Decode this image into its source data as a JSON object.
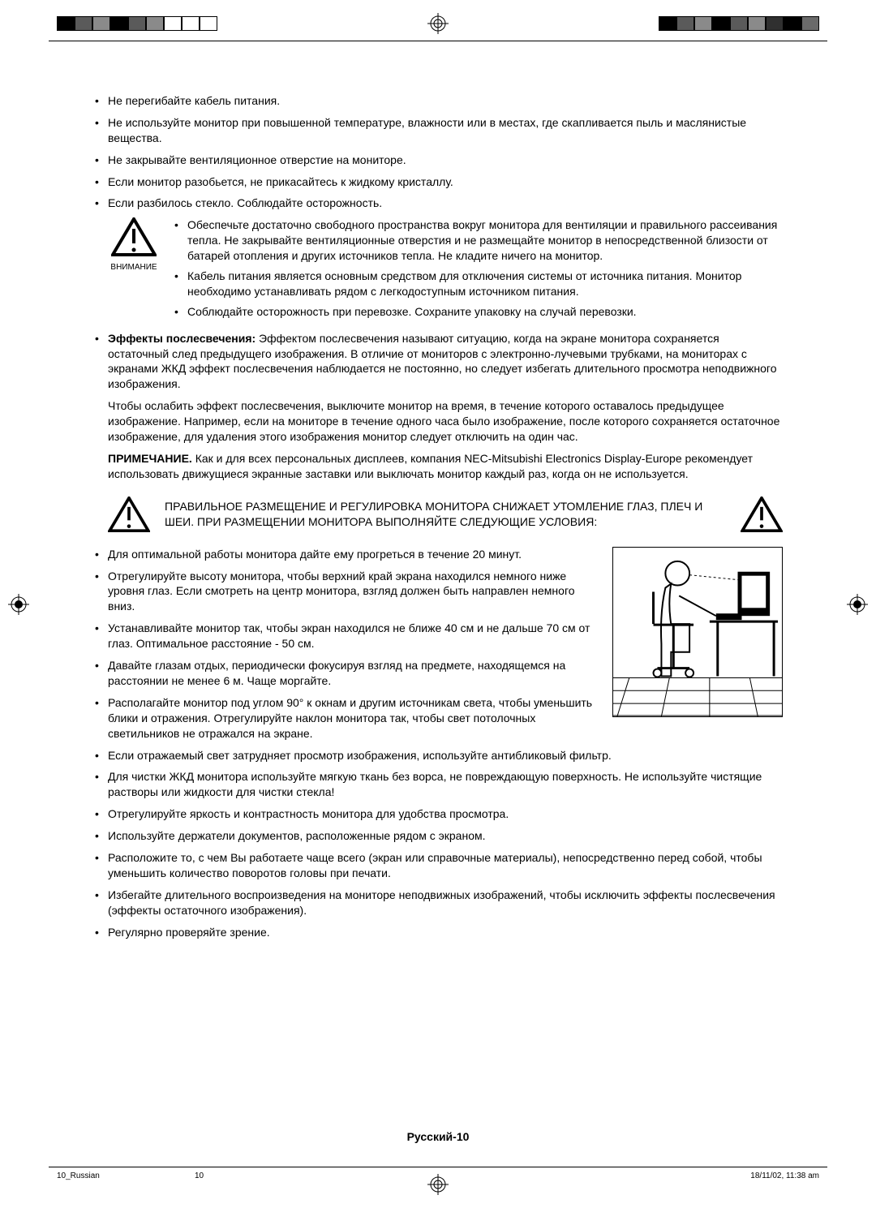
{
  "topBullets": [
    "Не перегибайте кабель питания.",
    "Не используйте монитор при повышенной температуре, влажности или в местах, где скапливается пыль и маслянистые вещества.",
    "Не закрывайте вентиляционное отверстие на мониторе.",
    "Если монитор разобьется, не прикасайтесь к жидкому кристаллу.",
    "Если разбилось стекло. Соблюдайте осторожность."
  ],
  "warningLabel": "ВНИМАНИЕ",
  "warningBullets": [
    "Обеспечьте достаточно свободного пространства вокруг монитора для вентиляции и правильного рассеивания тепла. Не закрывайте вентиляционные отверстия и не размещайте монитор в непосредственной близости от батарей отопления и других источников тепла. Не кладите ничего на монитор.",
    "Кабель питания является основным средством для отключения системы от источника питания. Монитор необходимо устанавливать рядом с легкодоступным источником питания.",
    "Соблюдайте осторожность при перевозке. Сохраните упаковку на случай перевозки."
  ],
  "effectLabel": "Эффекты послесвечения:",
  "effectText": " Эффектом послесвечения называют ситуацию, когда на экране монитора сохраняется остаточный след предыдущего изображения. В отличие от мониторов с электронно-лучевыми трубками, на мониторах с экранами ЖКД эффект послесвечения наблюдается не постоянно, но следует избегать длительного просмотра неподвижного изображения.",
  "effectPara2": "Чтобы ослабить эффект послесвечения, выключите монитор на время, в течение которого оставалось предыдущее изображение. Например, если на мониторе в течение одного часа было изображение, после которого сохраняется остаточное изображение, для удаления этого изображения монитор следует отключить на один час.",
  "noteLabel": "ПРИМЕЧАНИЕ.",
  "noteText": " Как и для всех персональных дисплеев, компания NEC-Mitsubishi Electronics Display-Europe рекомендует использовать движущиеся экранные заставки или выключать монитор каждый раз, когда он не используется.",
  "cautionText": "ПРАВИЛЬНОЕ РАЗМЕЩЕНИЕ И РЕГУЛИРОВКА МОНИТОРА СНИЖАЕТ УТОМЛЕНИЕ ГЛАЗ, ПЛЕЧ И ШЕИ. ПРИ РАЗМЕЩЕНИИ МОНИТОРА ВЫПОЛНЯЙТЕ СЛЕДУЮЩИЕ УСЛОВИЯ:",
  "bottomBullets": [
    "Для оптимальной работы монитора дайте ему прогреться в течение 20 минут.",
    "Отрегулируйте высоту монитора, чтобы верхний край экрана находился немного ниже уровня глаз. Если смотреть на центр монитора, взгляд должен быть направлен немного вниз.",
    "Устанавливайте монитор так, чтобы экран находился не ближе 40 см и не дальше 70 см от глаз. Оптимальное расстояние - 50 см.",
    "Давайте глазам отдых, периодически фокусируя взгляд на предмете, находящемся на расстоянии не менее 6 м. Чаще моргайте.",
    "Располагайте монитор под углом 90° к окнам и другим источникам света, чтобы уменьшить блики и отражения. Отрегулируйте наклон монитора так, чтобы свет потолочных светильников не отражался на экране.",
    "Если отражаемый свет затрудняет просмотр изображения, используйте антибликовый фильтр.",
    "Для чистки ЖКД монитора используйте мягкую ткань без ворса, не повреждающую поверхность. Не используйте чистящие растворы или жидкости для чистки стекла!",
    "Отрегулируйте яркость и контрастность монитора для удобства просмотра.",
    "Используйте держатели документов, расположенные рядом с экраном.",
    "Расположите то, с чем Вы работаете чаще всего (экран или справочные материалы), непосредственно перед собой, чтобы уменьшить количество поворотов головы при печати.",
    "Избегайте длительного воспроизведения на мониторе неподвижных изображений, чтобы исключить эффекты послесвечения (эффекты остаточного изображения).",
    "Регулярно проверяйте зрение."
  ],
  "pageLabel": "Русский-10",
  "footerLeft": "10_Russian",
  "footerMid": "10",
  "footerRight": "18/11/02, 11:38 am",
  "colorBarsLeft": [
    "#000",
    "#5a5a5a",
    "#8a8a8a",
    "#000",
    "#5a5a5a",
    "#8a8a8a",
    "#fff",
    "#fff",
    "#fff"
  ],
  "colorBarsRight": [
    "#000",
    "#5a5a5a",
    "#8a8a8a",
    "#000",
    "#5a5a5a",
    "#8a8a8a",
    "#303030",
    "#000",
    "#6a6a6a"
  ]
}
